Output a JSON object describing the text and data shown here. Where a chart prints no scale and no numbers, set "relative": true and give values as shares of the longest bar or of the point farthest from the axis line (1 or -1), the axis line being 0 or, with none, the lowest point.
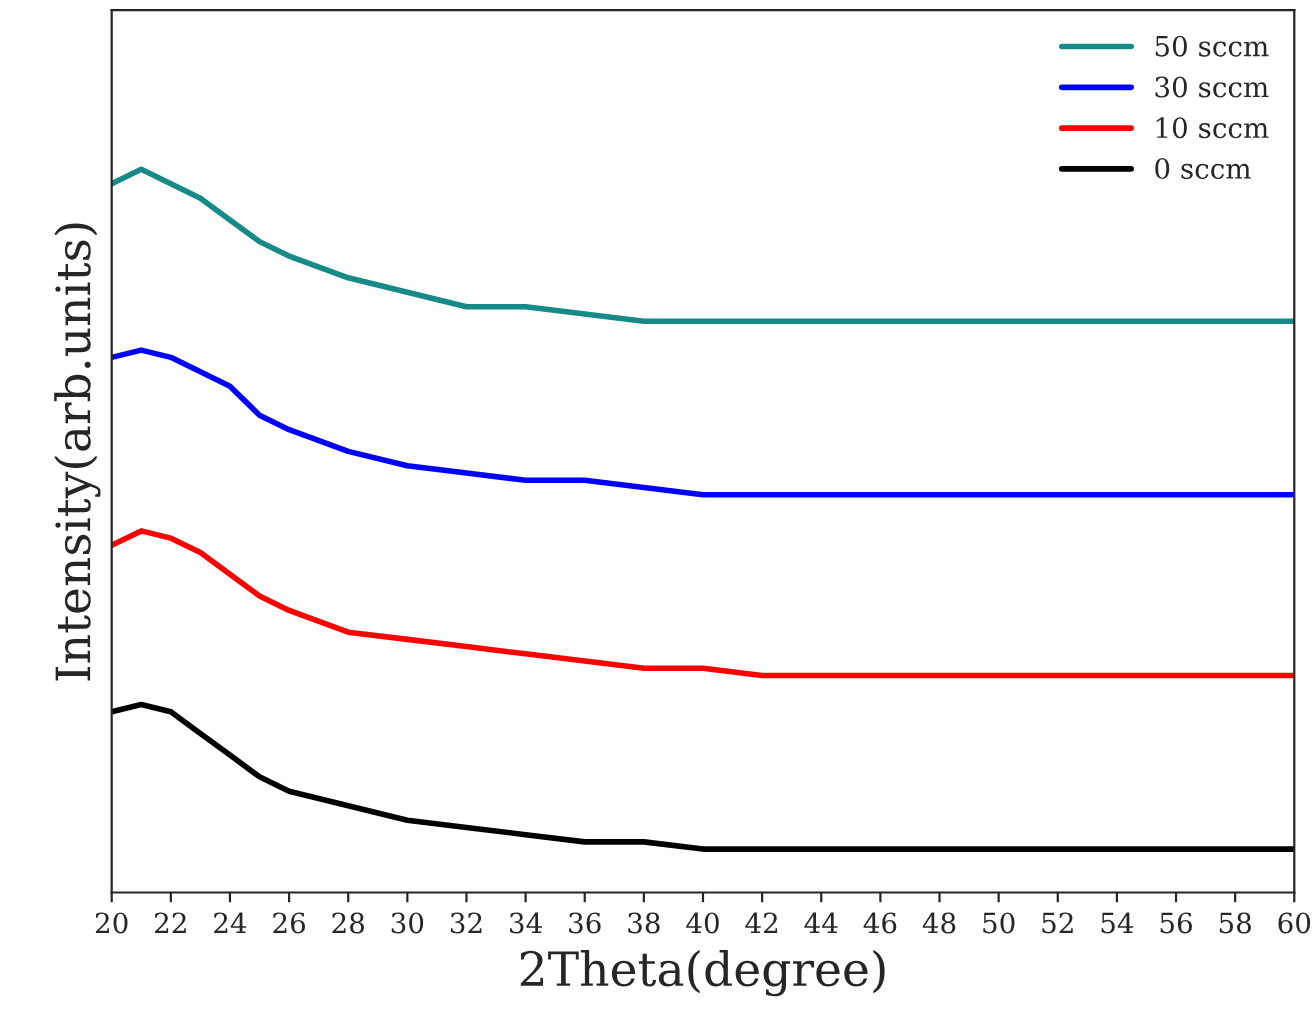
{
  "chart_data": {
    "type": "line",
    "xlabel": "2Theta(degree)",
    "ylabel": "Intensity(arb.units)",
    "relative": true,
    "x": [
      20,
      21,
      22,
      23,
      24,
      25,
      26,
      28,
      30,
      32,
      34,
      36,
      38,
      40,
      42,
      44,
      46,
      48,
      50,
      52,
      54,
      56,
      58,
      60
    ],
    "xlim": [
      20,
      60
    ],
    "xticks": [
      20,
      22,
      24,
      26,
      28,
      30,
      32,
      34,
      36,
      38,
      40,
      42,
      44,
      46,
      48,
      50,
      52,
      54,
      56,
      58,
      60
    ],
    "tick_labels": "x",
    "legend": "top right",
    "grid": false,
    "series": [
      {
        "name": "50 sccm",
        "color": "#158a87",
        "values": [
          0.98,
          1,
          0.98,
          0.96,
          0.93,
          0.9,
          0.88,
          0.85,
          0.83,
          0.81,
          0.81,
          0.8,
          0.79,
          0.79,
          0.79,
          0.79,
          0.79,
          0.79,
          0.79,
          0.79,
          0.79,
          0.79,
          0.79,
          0.79
        ]
      },
      {
        "name": "30 sccm",
        "color": "#0000ff",
        "values": [
          0.74,
          0.75,
          0.74,
          0.72,
          0.7,
          0.66,
          0.64,
          0.61,
          0.59,
          0.58,
          0.57,
          0.57,
          0.56,
          0.55,
          0.55,
          0.55,
          0.55,
          0.55,
          0.55,
          0.55,
          0.55,
          0.55,
          0.55,
          0.55
        ]
      },
      {
        "name": "10 sccm",
        "color": "#ff0000",
        "values": [
          0.48,
          0.5,
          0.49,
          0.47,
          0.44,
          0.41,
          0.39,
          0.36,
          0.35,
          0.34,
          0.33,
          0.32,
          0.31,
          0.31,
          0.3,
          0.3,
          0.3,
          0.3,
          0.3,
          0.3,
          0.3,
          0.3,
          0.3,
          0.3
        ]
      },
      {
        "name": "0 sccm",
        "color": "#000000",
        "values": [
          0.25,
          0.26,
          0.25,
          0.22,
          0.19,
          0.16,
          0.14,
          0.12,
          0.1,
          0.09,
          0.08,
          0.07,
          0.07,
          0.06,
          0.06,
          0.06,
          0.06,
          0.06,
          0.06,
          0.06,
          0.06,
          0.06,
          0.06,
          0.06
        ]
      }
    ]
  }
}
